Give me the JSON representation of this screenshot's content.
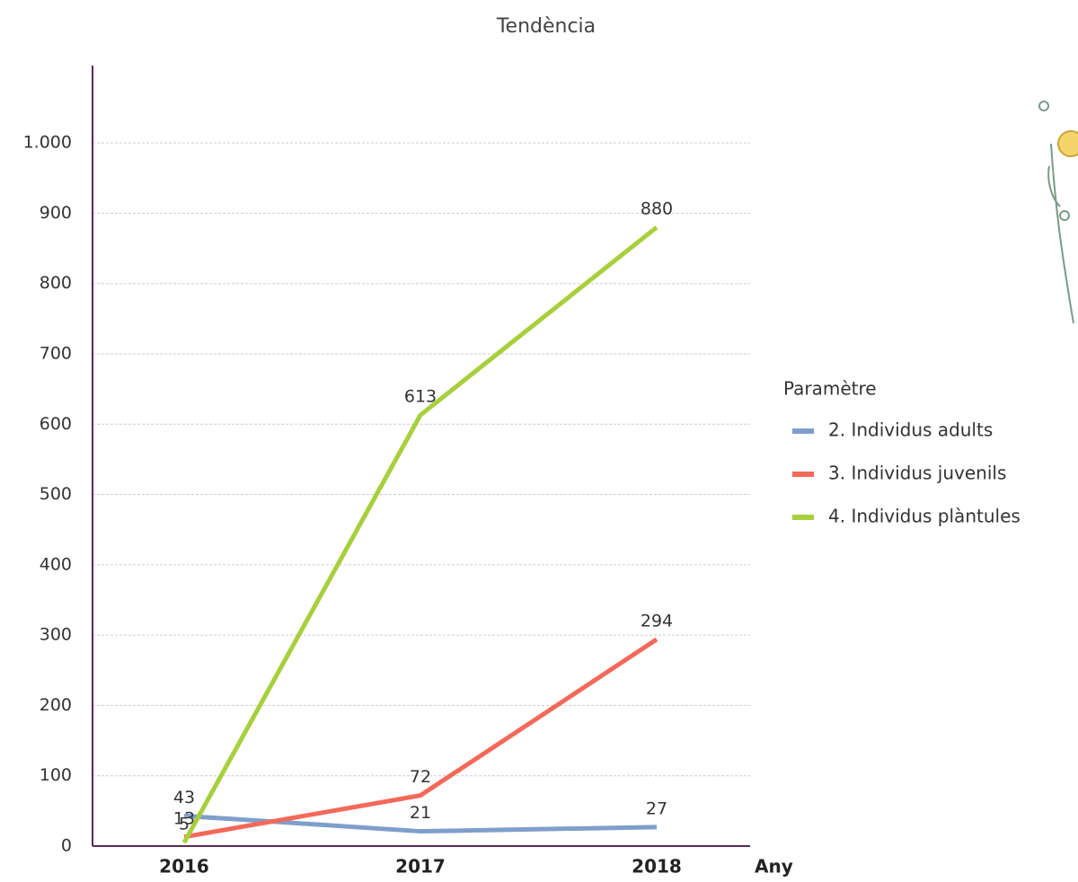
{
  "chart_data": {
    "type": "line",
    "title": "Tendència",
    "x_label": "Any",
    "categories": [
      "2016",
      "2017",
      "2018"
    ],
    "series": [
      {
        "name": "2. Individus adults",
        "color": "#7f9fcb",
        "values": [
          43,
          21,
          27
        ]
      },
      {
        "name": "3. Individus juvenils",
        "color": "#f4695a",
        "values": [
          13,
          72,
          294
        ]
      },
      {
        "name": "4. Individus plàntules",
        "color": "#a8cf3c",
        "values": [
          5,
          613,
          880
        ]
      }
    ],
    "legend_title": "Paramètre",
    "ylim": [
      0,
      1110
    ],
    "yticks": [
      0,
      100,
      200,
      300,
      400,
      500,
      600,
      700,
      800,
      900,
      {
        "value": 1000,
        "label": "1.000"
      }
    ],
    "grid": true,
    "legend_position": "right"
  }
}
